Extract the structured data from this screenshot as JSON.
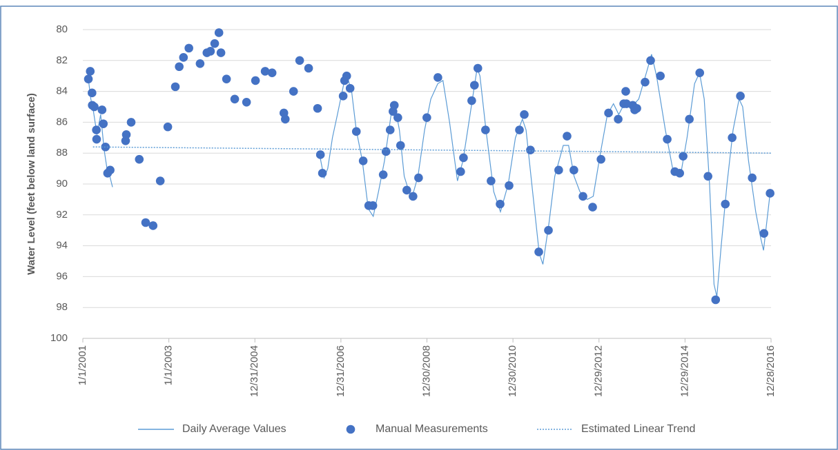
{
  "chart_data": {
    "type": "line",
    "y_label": "Water Level (feet below land surface)",
    "ylim": [
      80,
      100
    ],
    "y_inverted": true,
    "yticks": [
      80,
      82,
      84,
      86,
      88,
      90,
      92,
      94,
      96,
      98,
      100
    ],
    "xlim": [
      "2001-01-01",
      "2016-12-28"
    ],
    "xticks": [
      {
        "value": "2001-01-01",
        "label": "1/1/2001"
      },
      {
        "value": "2003-01-01",
        "label": "1/1/2003"
      },
      {
        "value": "2004-12-31",
        "label": "12/31/2004"
      },
      {
        "value": "2006-12-31",
        "label": "12/31/2006"
      },
      {
        "value": "2008-12-30",
        "label": "12/30/2008"
      },
      {
        "value": "2010-12-30",
        "label": "12/30/2010"
      },
      {
        "value": "2012-12-29",
        "label": "12/29/2012"
      },
      {
        "value": "2014-12-29",
        "label": "12/29/2014"
      },
      {
        "value": "2016-12-28",
        "label": "12/28/2016"
      }
    ],
    "grid": true,
    "legend": "bottom",
    "series": [
      {
        "name": "Daily Average Values",
        "type": "line",
        "color": "#5b9bd5",
        "x": [
          "2001-02-17",
          "2001-03-10",
          "2001-04-01",
          "2001-05-01",
          "2001-06-01",
          "2001-07-01",
          "2001-07-25",
          "2001-08-15",
          "2001-09-10",
          null,
          "2006-07-01",
          "2006-08-10",
          "2006-09-10",
          "2006-10-20",
          "2006-12-01",
          "2007-01-25",
          "2007-03-01",
          "2007-04-01",
          "2007-05-10",
          "2007-07-01",
          "2007-08-20",
          "2007-10-01",
          "2007-11-15",
          "2008-01-05",
          "2008-03-01",
          "2008-04-01",
          "2008-05-10",
          "2008-06-20",
          "2008-08-20",
          "2008-10-15",
          "2008-12-10",
          "2009-02-01",
          "2009-04-01",
          "2009-05-15",
          "2009-07-10",
          "2009-09-15",
          "2009-11-01",
          "2010-01-10",
          "2010-03-01",
          "2010-03-25",
          "2010-05-15",
          "2010-07-20",
          "2010-09-15",
          "2010-11-20",
          "2011-01-20",
          "2011-03-20",
          "2011-04-20",
          "2011-06-15",
          "2011-08-10",
          "2011-09-10",
          "2011-11-01",
          "2011-12-20",
          "2012-03-01",
          "2012-04-15",
          "2012-06-01",
          "2012-07-20",
          "2012-09-20",
          "2012-11-10",
          "2013-01-10",
          "2013-03-10",
          "2013-05-01",
          "2013-06-15",
          "2013-08-01",
          "2013-10-01",
          "2013-12-01",
          "2014-02-15",
          "2014-03-20",
          "2014-05-01",
          "2014-07-15",
          "2014-09-20",
          "2014-11-20",
          "2015-01-15",
          "2015-03-20",
          "2015-05-01",
          "2015-06-10",
          "2015-07-25",
          "2015-09-01",
          "2015-09-25",
          "2015-11-01",
          "2015-12-20",
          "2016-02-10",
          "2016-04-01",
          "2016-05-01",
          "2016-06-20",
          "2016-08-20",
          "2016-10-01",
          "2016-10-25",
          "2016-12-20"
        ],
        "values": [
          83.2,
          84.5,
          85.3,
          86.8,
          85.5,
          87.8,
          89.0,
          89.4,
          90.2,
          null,
          88.0,
          89.6,
          89.0,
          87.0,
          85.5,
          83.5,
          83.2,
          84.0,
          86.5,
          88.5,
          91.6,
          92.1,
          90.5,
          88.5,
          85.5,
          84.9,
          86.5,
          89.5,
          91.0,
          89.5,
          86.5,
          84.5,
          83.5,
          83.3,
          86.0,
          89.8,
          88.5,
          85.0,
          82.5,
          83.0,
          86.5,
          90.5,
          91.8,
          90.0,
          87.0,
          85.8,
          86.5,
          90.5,
          94.5,
          95.2,
          92.5,
          89.5,
          87.5,
          87.5,
          89.5,
          90.5,
          91.0,
          90.8,
          88.0,
          85.5,
          84.8,
          85.5,
          84.8,
          85.0,
          84.5,
          82.5,
          81.6,
          83.0,
          86.5,
          89.2,
          89.5,
          87.0,
          83.5,
          82.8,
          84.5,
          90.0,
          96.5,
          97.3,
          94.0,
          90.0,
          86.5,
          84.5,
          85.0,
          88.5,
          91.8,
          93.5,
          94.3,
          90.6
        ]
      },
      {
        "name": "Manual Measurements",
        "type": "scatter",
        "color": "#4472c4",
        "x": [
          "2001-02-17",
          "2001-03-05",
          "2001-03-20",
          "2001-03-22",
          "2001-04-08",
          "2001-04-26",
          "2001-04-28",
          "2001-06-13",
          "2001-06-24",
          "2001-07-12",
          "2001-07-30",
          "2001-08-21",
          "2001-12-30",
          "2002-01-05",
          "2002-02-15",
          "2002-04-25",
          "2002-06-18",
          "2002-08-20",
          "2002-10-20",
          "2002-12-23",
          "2003-02-25",
          "2003-03-30",
          "2003-05-05",
          "2003-06-20",
          "2003-09-23",
          "2003-11-20",
          "2003-12-20",
          "2004-01-25",
          "2004-03-01",
          "2004-03-18",
          "2004-05-04",
          "2004-07-13",
          "2004-10-21",
          "2005-01-05",
          "2005-03-28",
          "2005-05-26",
          "2005-09-03",
          "2005-09-15",
          "2005-11-24",
          "2006-01-15",
          "2006-04-01",
          "2006-06-16",
          "2006-07-10",
          "2006-07-27",
          "2007-01-19",
          "2007-01-31",
          "2007-02-18",
          "2007-03-19",
          "2007-05-11",
          "2007-07-08",
          "2007-08-24",
          "2007-09-28",
          "2007-12-25",
          "2008-01-18",
          "2008-02-22",
          "2008-03-17",
          "2008-03-28",
          "2008-04-27",
          "2008-05-20",
          "2008-07-12",
          "2008-09-03",
          "2008-10-20",
          "2008-12-29",
          "2009-04-02",
          "2009-10-12",
          "2009-11-05",
          "2010-01-14",
          "2010-02-06",
          "2010-03-07",
          "2010-05-11",
          "2010-06-27",
          "2010-09-12",
          "2010-11-27",
          "2011-02-23",
          "2011-04-05",
          "2011-05-27",
          "2011-08-06",
          "2011-10-27",
          "2012-01-22",
          "2012-04-02",
          "2012-05-30",
          "2012-08-15",
          "2012-11-05",
          "2013-01-15",
          "2013-03-20",
          "2013-06-10",
          "2013-07-27",
          "2013-08-13",
          "2013-08-19",
          "2013-10-11",
          "2013-10-28",
          "2013-11-15",
          "2014-01-24",
          "2014-03-12",
          "2014-06-03",
          "2014-07-31",
          "2014-10-04",
          "2014-11-14",
          "2014-12-13",
          "2015-02-04",
          "2015-05-03",
          "2015-07-12",
          "2015-09-15",
          "2015-12-06",
          "2016-02-02",
          "2016-04-12",
          "2016-07-21",
          "2016-10-29",
          "2016-12-20"
        ],
        "values": [
          83.2,
          82.7,
          84.1,
          84.9,
          85.0,
          86.5,
          87.1,
          85.2,
          86.1,
          87.6,
          89.3,
          89.1,
          87.2,
          86.8,
          86.0,
          88.4,
          92.5,
          92.7,
          89.8,
          86.3,
          83.7,
          82.4,
          81.8,
          81.2,
          82.2,
          81.5,
          81.4,
          80.9,
          80.2,
          81.5,
          83.2,
          84.5,
          84.7,
          83.3,
          82.7,
          82.8,
          85.4,
          85.8,
          84.0,
          82.0,
          82.5,
          85.1,
          88.1,
          89.3,
          84.3,
          83.3,
          83.0,
          83.8,
          86.6,
          88.5,
          91.4,
          91.4,
          89.4,
          87.9,
          86.5,
          85.3,
          84.9,
          85.7,
          87.5,
          90.4,
          90.8,
          89.6,
          85.7,
          83.1,
          89.2,
          88.3,
          84.6,
          83.6,
          82.5,
          86.5,
          89.8,
          91.3,
          90.1,
          86.5,
          85.5,
          87.8,
          94.4,
          93.0,
          89.1,
          86.9,
          89.1,
          90.8,
          91.5,
          88.4,
          85.4,
          85.8,
          84.8,
          84.0,
          84.8,
          84.9,
          85.2,
          85.1,
          83.4,
          82.0,
          83.0,
          87.1,
          89.2,
          89.3,
          88.2,
          85.8,
          82.8,
          89.5,
          97.5,
          91.3,
          87.0,
          84.3,
          89.6,
          93.2,
          90.6
        ]
      },
      {
        "name": "Estimated Linear Trend",
        "type": "line",
        "dotted": true,
        "color": "#5b9bd5",
        "x": [
          "2001-03-28",
          "2016-12-28"
        ],
        "values": [
          87.6,
          88.0
        ]
      }
    ]
  }
}
